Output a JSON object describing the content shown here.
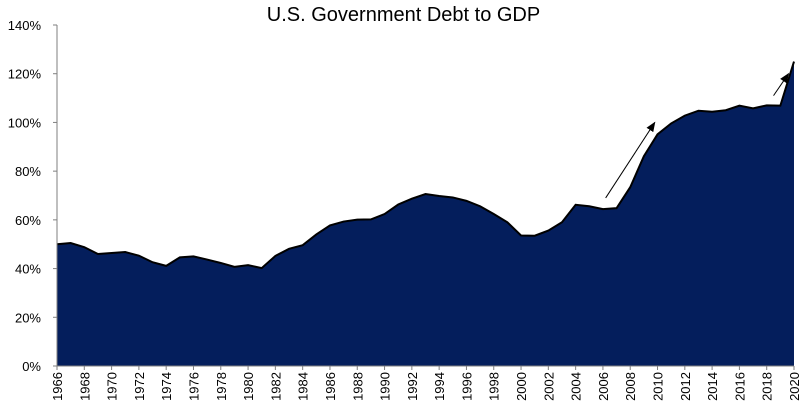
{
  "chart_data": {
    "type": "area",
    "title": "U.S. Government Debt to GDP",
    "xlabel": "",
    "ylabel": "",
    "ylim": [
      0,
      140
    ],
    "xlim": [
      1966,
      2020
    ],
    "y_ticks": [
      "0%",
      "20%",
      "40%",
      "60%",
      "80%",
      "100%",
      "120%",
      "140%"
    ],
    "y_tick_values": [
      0,
      20,
      40,
      60,
      80,
      100,
      120,
      140
    ],
    "x_ticks": [
      "1966",
      "1968",
      "1970",
      "1972",
      "1974",
      "1976",
      "1978",
      "1980",
      "1982",
      "1984",
      "1986",
      "1988",
      "1990",
      "1992",
      "1994",
      "1996",
      "1998",
      "2000",
      "2002",
      "2004",
      "2006",
      "2008",
      "2010",
      "2012",
      "2014",
      "2016",
      "2018",
      "2020"
    ],
    "x": [
      1966,
      1967,
      1968,
      1969,
      1970,
      1971,
      1972,
      1973,
      1974,
      1975,
      1976,
      1977,
      1978,
      1979,
      1980,
      1981,
      1982,
      1983,
      1984,
      1985,
      1986,
      1987,
      1988,
      1989,
      1990,
      1991,
      1992,
      1993,
      1994,
      1995,
      1996,
      1997,
      1998,
      1999,
      2000,
      2001,
      2002,
      2003,
      2004,
      2005,
      2006,
      2007,
      2008,
      2009,
      2010,
      2011,
      2012,
      2013,
      2014,
      2015,
      2016,
      2017,
      2018,
      2019,
      2020
    ],
    "values": [
      50.0,
      50.5,
      48.8,
      46.0,
      46.4,
      46.8,
      45.3,
      42.6,
      41.1,
      44.6,
      45.0,
      43.7,
      42.3,
      40.7,
      41.4,
      40.2,
      45.2,
      48.1,
      49.6,
      54.0,
      57.7,
      59.3,
      60.1,
      60.2,
      62.4,
      66.3,
      68.7,
      70.6,
      69.8,
      69.2,
      67.8,
      65.6,
      62.4,
      59.0,
      53.6,
      53.5,
      55.6,
      59.0,
      66.2,
      65.6,
      64.4,
      64.8,
      73.4,
      86.1,
      95.1,
      99.6,
      102.8,
      104.8,
      104.4,
      105.0,
      106.9,
      105.8,
      107.0,
      106.9,
      125.0
    ],
    "grid": false,
    "legend": "none",
    "area_color": "#041E5C",
    "line_color": "#000000",
    "annotations": [
      {
        "type": "arrow",
        "from": [
          2006.2,
          69
        ],
        "to": [
          2009.8,
          100
        ]
      },
      {
        "type": "arrow",
        "from": [
          2018.5,
          111
        ],
        "to": [
          2019.6,
          120
        ]
      }
    ]
  }
}
